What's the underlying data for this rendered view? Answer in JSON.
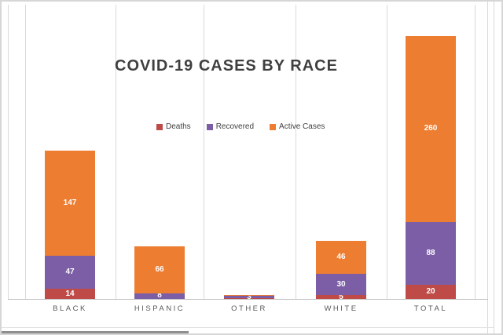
{
  "chart_data": {
    "type": "bar",
    "stacked": true,
    "title": "COVID-19 CASES BY RACE",
    "categories": [
      "BLACK",
      "HISPANIC",
      "OTHER",
      "WHITE",
      "TOTAL"
    ],
    "series": [
      {
        "name": "Deaths",
        "color": "#be4b48",
        "values": [
          14,
          0,
          1,
          5,
          20
        ],
        "labels": [
          "14",
          "",
          "",
          "5",
          "20"
        ]
      },
      {
        "name": "Recovered",
        "color": "#7b5ea6",
        "values": [
          47,
          8,
          3,
          30,
          88
        ],
        "labels": [
          "47",
          "8",
          "3",
          "30",
          "88"
        ]
      },
      {
        "name": "Active Cases",
        "color": "#ed7d31",
        "values": [
          147,
          66,
          1,
          46,
          260
        ],
        "labels": [
          "147",
          "66",
          "",
          "46",
          "260"
        ]
      }
    ],
    "legend_position": "top-center",
    "gridlines": "vertical",
    "xlabel": "",
    "ylabel": "",
    "colors": {
      "gridline": "#d9d9d9",
      "axis_line": "#bfbfbf",
      "title_text": "#3f3f3f",
      "category_text": "#595959",
      "legend_text": "#404040",
      "segment_label_text": "#ffffff"
    }
  }
}
